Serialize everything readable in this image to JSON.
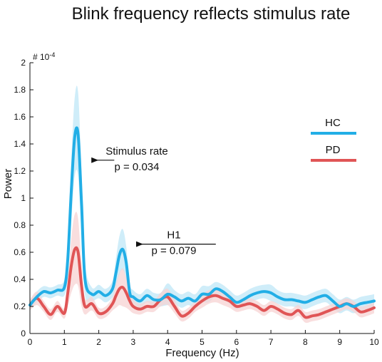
{
  "chart_data": {
    "type": "line",
    "title": "Blink frequency reflects stimulus rate",
    "xlabel": "Frequency (Hz)",
    "ylabel": "Power",
    "y_multiplier": "# 10",
    "y_multiplier_exp": "-4",
    "xlim": [
      0,
      10
    ],
    "ylim": [
      0,
      2
    ],
    "xticks": [
      "0",
      "1",
      "2",
      "3",
      "4",
      "5",
      "6",
      "7",
      "8",
      "9",
      "10"
    ],
    "yticks": [
      "0",
      "0.2",
      "0.4",
      "0.6",
      "0.8",
      "1",
      "1.2",
      "1.4",
      "1.6",
      "1.8",
      "2"
    ],
    "x": [
      0,
      0.2,
      0.4,
      0.6,
      0.8,
      1.0,
      1.1,
      1.2,
      1.3,
      1.4,
      1.5,
      1.6,
      1.8,
      2.0,
      2.2,
      2.4,
      2.5,
      2.6,
      2.7,
      2.8,
      2.9,
      3.0,
      3.2,
      3.4,
      3.6,
      3.8,
      4.0,
      4.2,
      4.4,
      4.6,
      4.8,
      5.0,
      5.2,
      5.4,
      5.6,
      5.8,
      6.0,
      6.2,
      6.4,
      6.6,
      6.8,
      7.0,
      7.2,
      7.4,
      7.6,
      7.8,
      8.0,
      8.2,
      8.4,
      8.6,
      8.8,
      9.0,
      9.2,
      9.4,
      9.6,
      9.8,
      10.0
    ],
    "series": [
      {
        "name": "HC",
        "color": "#22aee6",
        "band_color": "#bfe7f7",
        "values": [
          0.21,
          0.27,
          0.31,
          0.3,
          0.32,
          0.34,
          0.55,
          1.05,
          1.45,
          1.47,
          0.95,
          0.4,
          0.29,
          0.31,
          0.28,
          0.33,
          0.45,
          0.58,
          0.62,
          0.52,
          0.3,
          0.27,
          0.24,
          0.28,
          0.25,
          0.25,
          0.29,
          0.27,
          0.24,
          0.26,
          0.24,
          0.29,
          0.29,
          0.33,
          0.31,
          0.27,
          0.23,
          0.25,
          0.28,
          0.3,
          0.31,
          0.3,
          0.27,
          0.25,
          0.25,
          0.24,
          0.23,
          0.25,
          0.27,
          0.28,
          0.24,
          0.2,
          0.22,
          0.2,
          0.22,
          0.23,
          0.24
        ],
        "upper": [
          0.24,
          0.31,
          0.35,
          0.34,
          0.36,
          0.4,
          0.68,
          1.28,
          1.74,
          1.78,
          1.18,
          0.52,
          0.34,
          0.36,
          0.33,
          0.39,
          0.56,
          0.72,
          0.77,
          0.64,
          0.37,
          0.32,
          0.29,
          0.33,
          0.3,
          0.3,
          0.37,
          0.32,
          0.29,
          0.31,
          0.29,
          0.35,
          0.35,
          0.38,
          0.36,
          0.32,
          0.28,
          0.3,
          0.33,
          0.35,
          0.36,
          0.36,
          0.32,
          0.3,
          0.3,
          0.29,
          0.28,
          0.3,
          0.32,
          0.33,
          0.29,
          0.25,
          0.27,
          0.25,
          0.27,
          0.28,
          0.29
        ],
        "lower": [
          0.18,
          0.23,
          0.27,
          0.26,
          0.28,
          0.28,
          0.42,
          0.82,
          1.16,
          1.16,
          0.72,
          0.28,
          0.24,
          0.26,
          0.23,
          0.27,
          0.34,
          0.44,
          0.47,
          0.4,
          0.23,
          0.22,
          0.19,
          0.23,
          0.2,
          0.2,
          0.21,
          0.22,
          0.19,
          0.21,
          0.19,
          0.23,
          0.23,
          0.28,
          0.26,
          0.22,
          0.18,
          0.2,
          0.23,
          0.25,
          0.26,
          0.24,
          0.22,
          0.2,
          0.2,
          0.19,
          0.18,
          0.2,
          0.22,
          0.23,
          0.19,
          0.15,
          0.17,
          0.15,
          0.17,
          0.18,
          0.19
        ]
      },
      {
        "name": "PD",
        "color": "#e05556",
        "band_color": "#f7d3d3",
        "values": [
          0.21,
          0.26,
          0.2,
          0.14,
          0.2,
          0.15,
          0.3,
          0.5,
          0.62,
          0.6,
          0.35,
          0.2,
          0.22,
          0.15,
          0.16,
          0.22,
          0.28,
          0.33,
          0.34,
          0.3,
          0.24,
          0.2,
          0.18,
          0.2,
          0.2,
          0.25,
          0.27,
          0.2,
          0.13,
          0.15,
          0.2,
          0.24,
          0.27,
          0.28,
          0.26,
          0.24,
          0.2,
          0.21,
          0.22,
          0.2,
          0.17,
          0.2,
          0.18,
          0.15,
          0.14,
          0.17,
          0.12,
          0.13,
          0.14,
          0.16,
          0.18,
          0.2,
          0.22,
          0.2,
          0.16,
          0.17,
          0.19
        ],
        "upper": [
          0.25,
          0.31,
          0.24,
          0.18,
          0.24,
          0.19,
          0.4,
          0.7,
          0.88,
          0.85,
          0.5,
          0.26,
          0.27,
          0.19,
          0.2,
          0.27,
          0.37,
          0.45,
          0.48,
          0.41,
          0.31,
          0.25,
          0.22,
          0.24,
          0.24,
          0.3,
          0.33,
          0.25,
          0.17,
          0.19,
          0.24,
          0.29,
          0.32,
          0.33,
          0.31,
          0.29,
          0.24,
          0.25,
          0.26,
          0.24,
          0.21,
          0.24,
          0.22,
          0.19,
          0.18,
          0.21,
          0.16,
          0.17,
          0.18,
          0.2,
          0.22,
          0.24,
          0.26,
          0.24,
          0.2,
          0.21,
          0.23
        ],
        "lower": [
          0.17,
          0.21,
          0.16,
          0.1,
          0.16,
          0.11,
          0.2,
          0.3,
          0.36,
          0.35,
          0.2,
          0.14,
          0.17,
          0.11,
          0.12,
          0.17,
          0.19,
          0.21,
          0.2,
          0.19,
          0.17,
          0.15,
          0.14,
          0.16,
          0.16,
          0.2,
          0.21,
          0.15,
          0.09,
          0.11,
          0.16,
          0.19,
          0.22,
          0.23,
          0.21,
          0.19,
          0.16,
          0.17,
          0.18,
          0.16,
          0.13,
          0.16,
          0.14,
          0.11,
          0.1,
          0.13,
          0.08,
          0.09,
          0.1,
          0.12,
          0.14,
          0.16,
          0.18,
          0.16,
          0.12,
          0.13,
          0.15
        ]
      }
    ],
    "legend_position": "right",
    "annotations": [
      {
        "line1": "Stimulus rate",
        "line2": "p = 0.034",
        "arrow_to_x": 1.95,
        "arrow_from_x": 2.45,
        "arrow_y": 1.28
      },
      {
        "line1": "H1",
        "line2": "p = 0.079",
        "arrow_to_x": 3.25,
        "arrow_from_x": 5.4,
        "arrow_y": 0.66
      }
    ]
  }
}
